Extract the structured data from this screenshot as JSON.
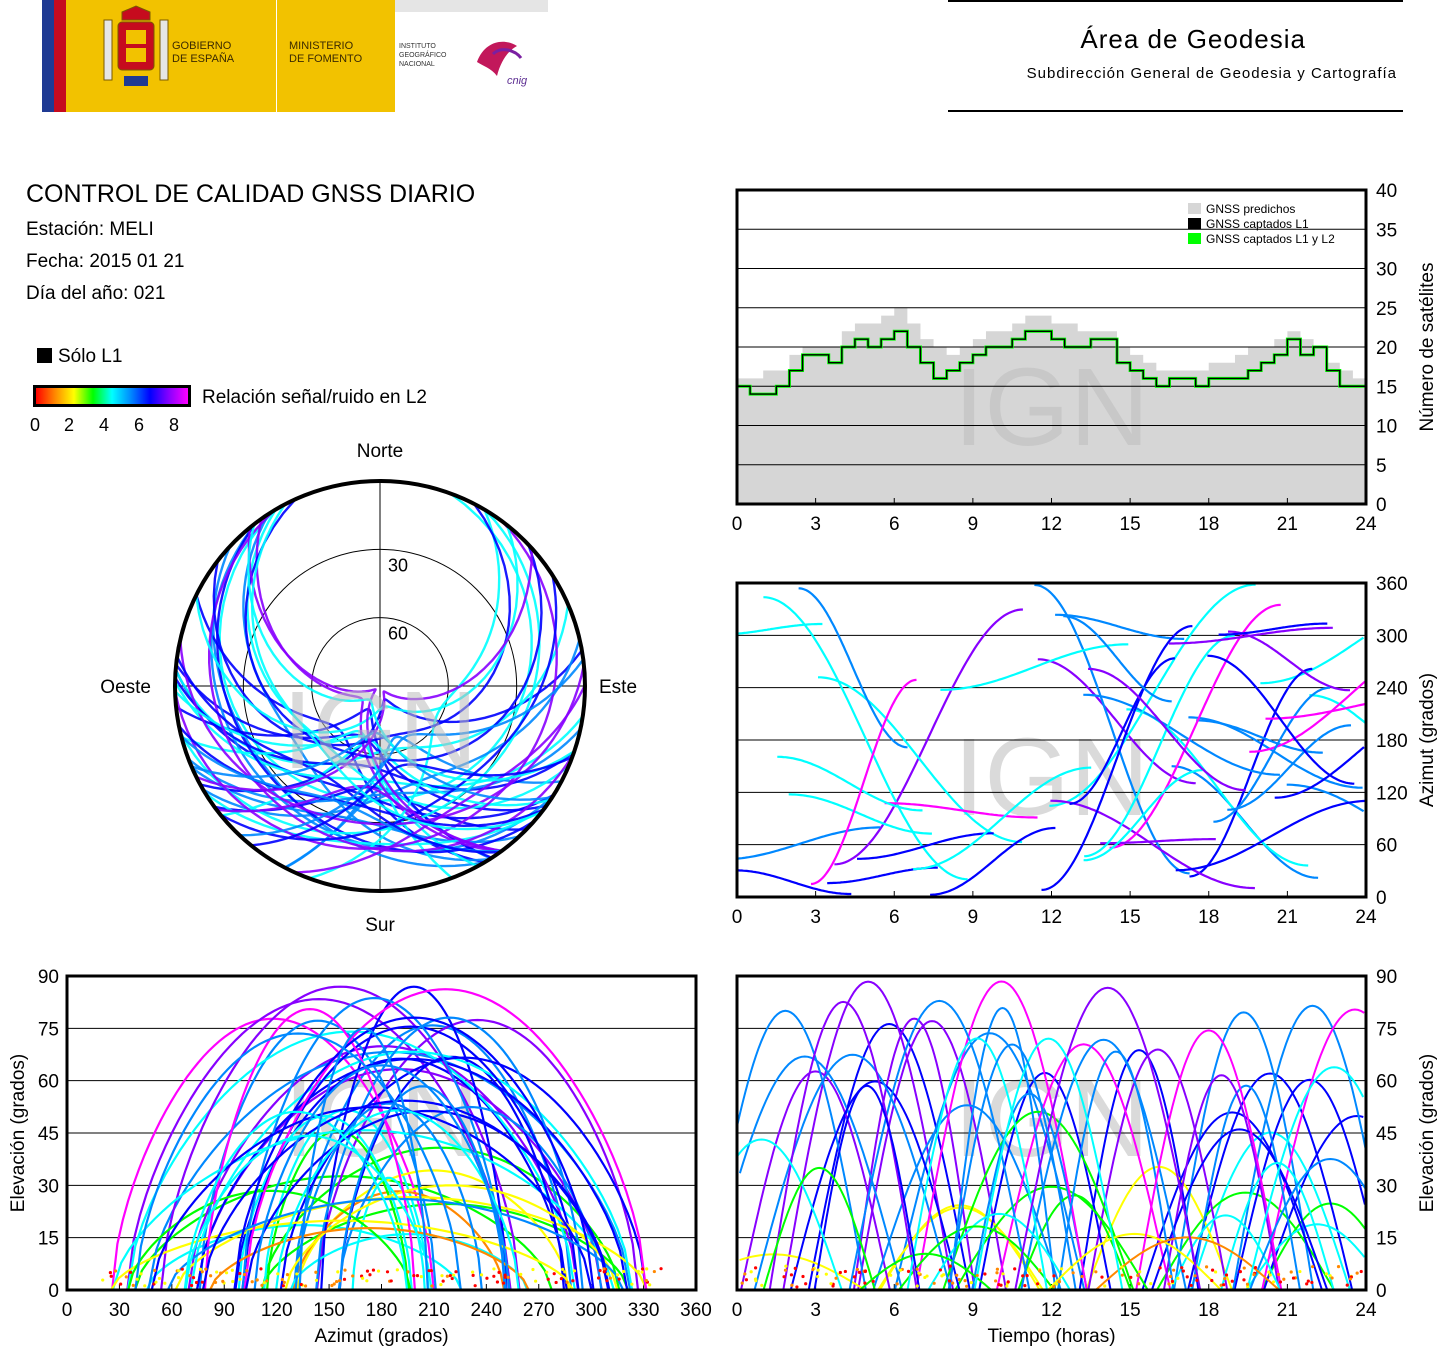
{
  "header": {
    "gov_name": [
      "GOBIERNO",
      "DE ESPAÑA"
    ],
    "ministry_name": [
      "MINISTERIO",
      "DE FOMENTO"
    ],
    "institute_name": [
      "INSTITUTO",
      "GEOGRÁFICO",
      "NACIONAL"
    ],
    "cnig_logo_text": "cnig",
    "area_title": "Área de Geodesia",
    "area_subtitle": "Subdirección General de Geodesia y Cartografía"
  },
  "report": {
    "title": "CONTROL DE CALIDAD GNSS DIARIO",
    "station": "Estación: MELI",
    "date": "Fecha: 2015 01 21",
    "doy": "Día del año: 021"
  },
  "legend": {
    "only_l1": "Sólo L1",
    "snr_label": "Relación señal/ruido en L2",
    "snr_ticks": [
      "0",
      "2",
      "4",
      "6",
      "8"
    ]
  },
  "watermark": "IGN",
  "colors": {
    "snr_scale": [
      "#ff0000",
      "#ff8800",
      "#ffff00",
      "#00ff00",
      "#00ffff",
      "#0088ff",
      "#0000ff",
      "#8800ff",
      "#ff00ff"
    ],
    "predicted": "#d6d6d6",
    "l1": "#000000",
    "l1l2": "#00ff00"
  },
  "chart_data": [
    {
      "type": "line",
      "id": "satellites",
      "xlabel": "",
      "ylabel": "Número de satélites",
      "xlim": [
        0,
        24
      ],
      "ylim": [
        0,
        40
      ],
      "xticks": [
        "0",
        "3",
        "6",
        "9",
        "12",
        "15",
        "18",
        "21",
        "24"
      ],
      "yticks": [
        "0",
        "5",
        "10",
        "15",
        "20",
        "25",
        "30",
        "35",
        "40"
      ],
      "grid": true,
      "legend_position": "top-right",
      "series": [
        {
          "name": "GNSS predichos",
          "style": "area",
          "x": [
            0,
            0.5,
            1,
            1.5,
            2,
            2.5,
            3,
            3.5,
            4,
            4.5,
            5,
            5.5,
            6,
            6.5,
            7,
            7.5,
            8,
            8.5,
            9,
            9.5,
            10,
            10.5,
            11,
            11.5,
            12,
            12.5,
            13,
            13.5,
            14,
            14.5,
            15,
            15.5,
            16,
            16.5,
            17,
            17.5,
            18,
            18.5,
            19,
            19.5,
            20,
            20.5,
            21,
            21.5,
            22,
            22.5,
            23,
            23.5,
            24
          ],
          "y": [
            16,
            16,
            17,
            17,
            19,
            20,
            20,
            20,
            22,
            23,
            23,
            24,
            25,
            23,
            21,
            20,
            19,
            20,
            21,
            22,
            22,
            23,
            24,
            24,
            23,
            23,
            22,
            22,
            22,
            20,
            19,
            18,
            17,
            17,
            17,
            17,
            18,
            18,
            19,
            20,
            20,
            21,
            22,
            21,
            20,
            18,
            17,
            16,
            16
          ]
        },
        {
          "name": "GNSS captados L1",
          "style": "step",
          "x": [
            0,
            0.5,
            1,
            1.5,
            2,
            2.5,
            3,
            3.5,
            4,
            4.5,
            5,
            5.5,
            6,
            6.5,
            7,
            7.5,
            8,
            8.5,
            9,
            9.5,
            10,
            10.5,
            11,
            11.5,
            12,
            12.5,
            13,
            13.5,
            14,
            14.5,
            15,
            15.5,
            16,
            16.5,
            17,
            17.5,
            18,
            18.5,
            19,
            19.5,
            20,
            20.5,
            21,
            21.5,
            22,
            22.5,
            23,
            23.5,
            24
          ],
          "y": [
            15,
            14,
            14,
            15,
            17,
            19,
            19,
            18,
            20,
            21,
            20,
            21,
            22,
            20,
            18,
            16,
            17,
            18,
            19,
            20,
            20,
            21,
            22,
            22,
            21,
            20,
            20,
            21,
            21,
            18,
            17,
            16,
            15,
            16,
            16,
            15,
            16,
            16,
            16,
            17,
            18,
            19,
            21,
            19,
            20,
            17,
            15,
            15,
            15
          ]
        },
        {
          "name": "GNSS captados L1 y L2",
          "style": "step",
          "x": [
            0,
            0.5,
            1,
            1.5,
            2,
            2.5,
            3,
            3.5,
            4,
            4.5,
            5,
            5.5,
            6,
            6.5,
            7,
            7.5,
            8,
            8.5,
            9,
            9.5,
            10,
            10.5,
            11,
            11.5,
            12,
            12.5,
            13,
            13.5,
            14,
            14.5,
            15,
            15.5,
            16,
            16.5,
            17,
            17.5,
            18,
            18.5,
            19,
            19.5,
            20,
            20.5,
            21,
            21.5,
            22,
            22.5,
            23,
            23.5,
            24
          ],
          "y": [
            15,
            14,
            14,
            15,
            17,
            19,
            19,
            18,
            20,
            21,
            20,
            21,
            22,
            20,
            18,
            16,
            17,
            18,
            19,
            20,
            20,
            21,
            22,
            22,
            21,
            20,
            20,
            21,
            21,
            18,
            17,
            16,
            15,
            16,
            16,
            15,
            16,
            16,
            16,
            17,
            18,
            19,
            21,
            19,
            20,
            17,
            15,
            15,
            15
          ]
        }
      ]
    },
    {
      "type": "scatter",
      "id": "skyplot",
      "projection": "polar",
      "direction_labels": {
        "north": "Norte",
        "south": "Sur",
        "west": "Oeste",
        "east": "Este"
      },
      "rings_elevation": [
        0,
        30,
        60
      ],
      "ring_labels": [
        "30",
        "60"
      ],
      "coloring": "snr_l2"
    },
    {
      "type": "scatter",
      "id": "azimuth-time",
      "xlabel": "",
      "ylabel": "Azimut (grados)",
      "xlim": [
        0,
        24
      ],
      "ylim": [
        0,
        360
      ],
      "xticks": [
        "0",
        "3",
        "6",
        "9",
        "12",
        "15",
        "18",
        "21",
        "24"
      ],
      "yticks": [
        "0",
        "60",
        "120",
        "180",
        "240",
        "300",
        "360"
      ],
      "grid": true,
      "coloring": "snr_l2"
    },
    {
      "type": "scatter",
      "id": "elevation-azimuth",
      "xlabel": "Azimut (grados)",
      "ylabel": "Elevación (grados)",
      "xlim": [
        0,
        360
      ],
      "ylim": [
        0,
        90
      ],
      "xticks": [
        "0",
        "30",
        "60",
        "90",
        "120",
        "150",
        "180",
        "210",
        "240",
        "270",
        "300",
        "330",
        "360"
      ],
      "yticks": [
        "0",
        "15",
        "30",
        "45",
        "60",
        "75",
        "90"
      ],
      "grid": true,
      "coloring": "snr_l2"
    },
    {
      "type": "scatter",
      "id": "elevation-time",
      "xlabel": "Tiempo (horas)",
      "ylabel": "Elevación (grados)",
      "xlim": [
        0,
        24
      ],
      "ylim": [
        0,
        90
      ],
      "xticks": [
        "0",
        "3",
        "6",
        "9",
        "12",
        "15",
        "18",
        "21",
        "24"
      ],
      "yticks": [
        "0",
        "15",
        "30",
        "45",
        "60",
        "75",
        "90"
      ],
      "grid": true,
      "coloring": "snr_l2"
    }
  ]
}
